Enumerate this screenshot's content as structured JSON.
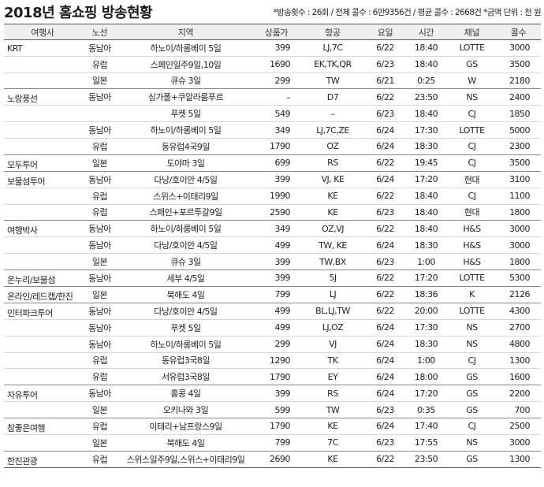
{
  "title": "2018년 홈쇼핑 방송현황",
  "notes": "*방송횟수 : 26회 / 전체 콜수 : 6만9356건 / 평균 콜수 : 2668건 *금액 단위 : 천 원",
  "headers": [
    "여행사",
    "노선",
    "지역",
    "상품가",
    "항공",
    "요일",
    "시간",
    "채널",
    "콜수"
  ],
  "rows": [
    {
      "agency": "KRT",
      "route": "동남아",
      "region": "하노이/하롱베이 5일",
      "price": "399",
      "air": "LJ,7C",
      "date": "6/22",
      "time": "18:40",
      "channel": "LOTTE",
      "calls": "3000"
    },
    {
      "agency": "",
      "route": "유럽",
      "region": "스페인일주9일,10일",
      "price": "1690",
      "air": "EK,TK,QR",
      "date": "6/23",
      "time": "18:40",
      "channel": "GS",
      "calls": "3500"
    },
    {
      "agency": "",
      "route": "일본",
      "region": "큐슈 3일",
      "price": "299",
      "air": "TW",
      "date": "6/21",
      "time": "0:25",
      "channel": "W",
      "calls": "2180"
    },
    {
      "agency": "노랑풍선",
      "route": "동남아",
      "region": "싱가폴+쿠알라룸푸르",
      "price": "–",
      "air": "D7",
      "date": "6/22",
      "time": "23:50",
      "channel": "NS",
      "calls": "2400"
    },
    {
      "agency": "",
      "route": "",
      "region": "푸켓 5일",
      "price": "549",
      "air": "–",
      "date": "6/23",
      "time": "18:40",
      "channel": "CJ",
      "calls": "1850"
    },
    {
      "agency": "",
      "route": "동남아",
      "region": "하노이/하롱베이 5일",
      "price": "349",
      "air": "LJ,7C,ZE",
      "date": "6/24",
      "time": "17:30",
      "channel": "LOTTE",
      "calls": "5000"
    },
    {
      "agency": "",
      "route": "유럽",
      "region": "동유럽4국9일",
      "price": "1790",
      "air": "OZ",
      "date": "6/24",
      "time": "18:30",
      "channel": "CJ",
      "calls": "2300"
    },
    {
      "agency": "모두투어",
      "route": "일본",
      "region": "도야마 3일",
      "price": "699",
      "air": "RS",
      "date": "6/22",
      "time": "19:45",
      "channel": "CJ",
      "calls": "3500"
    },
    {
      "agency": "보물섬투어",
      "route": "동남아",
      "region": "다낭/호이안 4/5일",
      "price": "399",
      "air": "VJ, KE",
      "date": "6/24",
      "time": "17:20",
      "channel": "현대",
      "calls": "3100"
    },
    {
      "agency": "",
      "route": "유럽",
      "region": "스위스+이태리9일",
      "price": "1990",
      "air": "KE",
      "date": "6/22",
      "time": "18:40",
      "channel": "CJ",
      "calls": "1100"
    },
    {
      "agency": "",
      "route": "유럽",
      "region": "스페인+포르투갈9일",
      "price": "2590",
      "air": "KE",
      "date": "6/23",
      "time": "18:40",
      "channel": "현대",
      "calls": "1800"
    },
    {
      "agency": "여행박사",
      "route": "동남아",
      "region": "하노이/하롱베이 5일",
      "price": "349",
      "air": "OZ,VJ",
      "date": "6/22",
      "time": "18:40",
      "channel": "H&S",
      "calls": "3000"
    },
    {
      "agency": "",
      "route": "동남아",
      "region": "다낭/호이안 4/5일",
      "price": "499",
      "air": "TW, KE",
      "date": "6/24",
      "time": "18:30",
      "channel": "H&S",
      "calls": "3000"
    },
    {
      "agency": "",
      "route": "일본",
      "region": "큐슈 3일",
      "price": "399",
      "air": "TW,BX",
      "date": "6/23",
      "time": "1:00",
      "channel": "H&S",
      "calls": "1800"
    },
    {
      "agency": "온누리/보물섬",
      "route": "동남아",
      "region": "세부 4/5일",
      "price": "399",
      "air": "5J",
      "date": "6/22",
      "time": "17:20",
      "channel": "LOTTE",
      "calls": "5300"
    },
    {
      "agency": "온라인/레드캡/한진",
      "route": "일본",
      "region": "북해도 4일",
      "price": "799",
      "air": "LJ",
      "date": "6/22",
      "time": "18:36",
      "channel": "K",
      "calls": "2126"
    },
    {
      "agency": "인터파크투어",
      "route": "동남아",
      "region": "다낭/호이안 4/5일",
      "price": "499",
      "air": "BL,LJ,TW",
      "date": "6/22",
      "time": "20:00",
      "channel": "LOTTE",
      "calls": "4300"
    },
    {
      "agency": "",
      "route": "동남아",
      "region": "푸켓 5일",
      "price": "499",
      "air": "LJ,OZ",
      "date": "6/24",
      "time": "17:30",
      "channel": "NS",
      "calls": "2700"
    },
    {
      "agency": "",
      "route": "동남아",
      "region": "하노이/하롱베이 5일",
      "price": "299",
      "air": "VJ",
      "date": "6/24",
      "time": "18:30",
      "channel": "NS",
      "calls": "4800"
    },
    {
      "agency": "",
      "route": "유럽",
      "region": "동유럽3국8일",
      "price": "1290",
      "air": "TK",
      "date": "6/24",
      "time": "1:00",
      "channel": "CJ",
      "calls": "1300"
    },
    {
      "agency": "",
      "route": "유럽",
      "region": "서유럽3국8일",
      "price": "1790",
      "air": "EY",
      "date": "6/24",
      "time": "18:00",
      "channel": "GS",
      "calls": "1600"
    },
    {
      "agency": "자유투어",
      "route": "동남아",
      "region": "홍콩 4일",
      "price": "399",
      "air": "RS",
      "date": "6/24",
      "time": "17:20",
      "channel": "GS",
      "calls": "2200"
    },
    {
      "agency": "",
      "route": "일본",
      "region": "오키나와 3일",
      "price": "599",
      "air": "TW",
      "date": "6/23",
      "time": "0:35",
      "channel": "GS",
      "calls": "700"
    },
    {
      "agency": "참좋은여행",
      "route": "유럽",
      "region": "이태리+남프랑스9일",
      "price": "1790",
      "air": "KE",
      "date": "6/24",
      "time": "17:40",
      "channel": "CJ",
      "calls": "2500"
    },
    {
      "agency": "",
      "route": "일본",
      "region": "북해도 4일",
      "price": "799",
      "air": "7C",
      "date": "6/23",
      "time": "17:55",
      "channel": "NS",
      "calls": "3000"
    },
    {
      "agency": "한진관광",
      "route": "유럽",
      "region": "스위스일주9일,스위스+이태리9일",
      "price": "2690",
      "air": "KE",
      "date": "6/22",
      "time": "23:50",
      "channel": "GS",
      "calls": "1300"
    }
  ]
}
